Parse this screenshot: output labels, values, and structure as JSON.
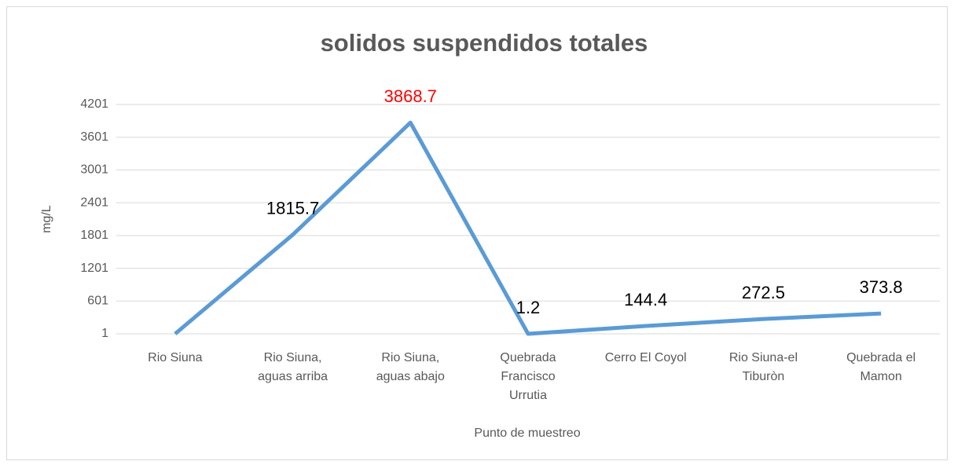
{
  "chart_data": {
    "type": "line",
    "title": "solidos suspendidos totales",
    "x_label": "Punto de muestreo",
    "y_label": "mg/L",
    "categories": [
      "Rio Siuna",
      "Rio Siuna, aguas arriba",
      "Rio Siuna, aguas abajo",
      "Quebrada Francisco Urrutia",
      "Cerro El Coyol",
      "Rio Siuna-el Tiburòn",
      "Quebrada el Mamon"
    ],
    "values": [
      1,
      1815.7,
      3868.7,
      1.2,
      144.4,
      272.5,
      373.8
    ],
    "value_labels": [
      null,
      "1815.7",
      "3868.7",
      "1.2",
      "144.4",
      "272.5",
      "373.8"
    ],
    "value_label_colors": [
      null,
      "#000000",
      "#ff0000",
      "#000000",
      "#000000",
      "#000000",
      "#000000"
    ],
    "color": "#5b9bd5",
    "ylim": [
      1,
      4201
    ],
    "yticks": [
      1,
      601,
      1201,
      1801,
      2401,
      3001,
      3601,
      4201
    ],
    "grid": true
  }
}
